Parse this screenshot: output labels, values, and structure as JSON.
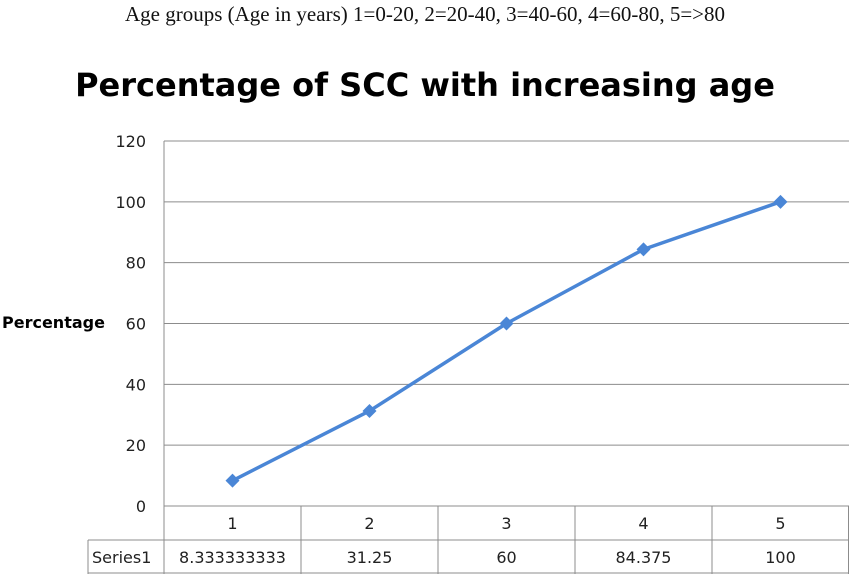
{
  "caption": "Age groups (Age in years) 1=0-20, 2=20-40, 3=40-60, 4=60-80, 5=>80",
  "chart_data": {
    "type": "line",
    "title": "Percentage of SCC with increasing age",
    "xlabel": "",
    "ylabel": "Percentage",
    "categories": [
      "1",
      "2",
      "3",
      "4",
      "5"
    ],
    "series": [
      {
        "name": "Series1",
        "values": [
          8.333333333,
          31.25,
          60,
          84.375,
          100
        ],
        "value_labels": [
          "8.333333333",
          "31.25",
          "60",
          "84.375",
          "100"
        ],
        "color": "#4a86d6"
      }
    ],
    "ylim": [
      0,
      120
    ],
    "yticks": [
      0,
      20,
      40,
      60,
      80,
      100,
      120
    ],
    "grid": true,
    "legend": "data-table"
  }
}
